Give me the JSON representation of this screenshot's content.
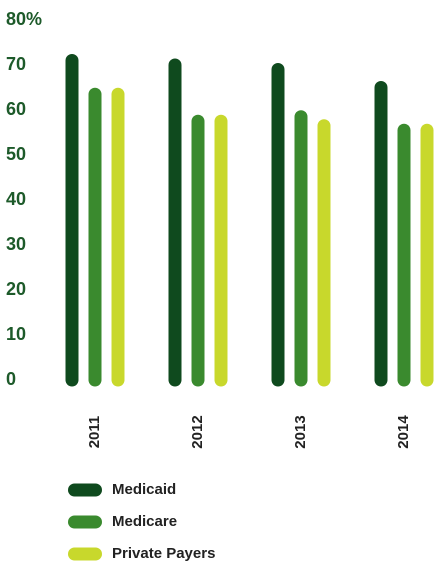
{
  "chart_data": {
    "type": "bar",
    "categories": [
      "2011",
      "2012",
      "2013",
      "2014"
    ],
    "series": [
      {
        "name": "Medicaid",
        "color": "#0f4a1e",
        "values": [
          71,
          70,
          69,
          65
        ]
      },
      {
        "name": "Medicare",
        "color": "#3a8a2e",
        "values": [
          63.5,
          57.5,
          58.5,
          55.5
        ]
      },
      {
        "name": "Private Payers",
        "color": "#c8d82c",
        "values": [
          63.5,
          57.5,
          56.5,
          55.5
        ]
      }
    ],
    "ylim": [
      0,
      80
    ],
    "yticks": [
      0,
      10,
      20,
      30,
      40,
      50,
      60,
      70,
      {
        "value": 80,
        "label": "80%"
      }
    ],
    "grid": false
  }
}
